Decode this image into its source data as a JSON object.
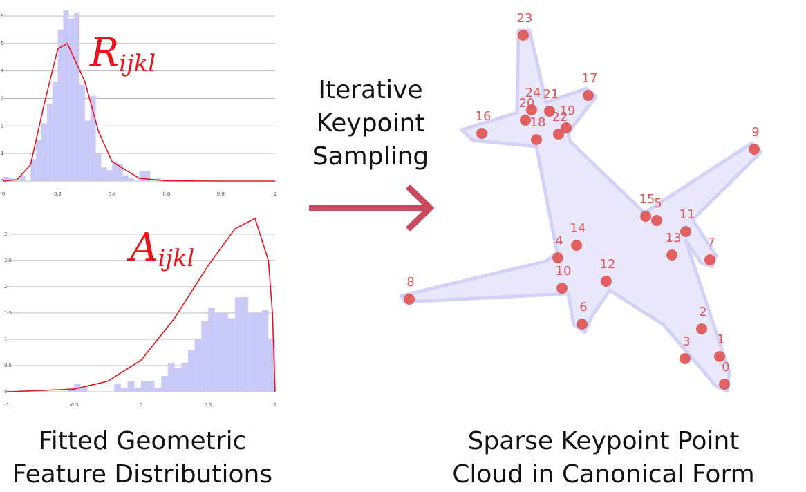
{
  "chart_data": [
    {
      "type": "histogram",
      "bins": [
        0,
        0.02,
        0.04,
        0.06,
        0.08,
        0.1,
        0.12,
        0.14,
        0.16,
        0.18,
        0.2,
        0.22,
        0.24,
        0.26,
        0.28,
        0.3,
        0.32,
        0.34,
        0.36,
        0.38,
        0.4,
        0.42,
        0.44,
        0.46,
        0.48,
        0.5,
        0.52,
        0.54,
        0.56,
        0.58,
        0.6
      ],
      "values": [
        0.15,
        0.1,
        0,
        0.2,
        0,
        0.8,
        1.5,
        2.1,
        2.8,
        3.6,
        5.5,
        6.2,
        5.9,
        6.1,
        3.5,
        2.2,
        3.1,
        1.0,
        0.5,
        0.4,
        0.7,
        0.6,
        0.2,
        0.1,
        0,
        0.35,
        0.35,
        0,
        0.1,
        0
      ],
      "color": "#c9c9f7",
      "fit": {
        "x": [
          0,
          0.05,
          0.1,
          0.15,
          0.2,
          0.235,
          0.3,
          0.35,
          0.4,
          0.5,
          0.6,
          0.8,
          1
        ],
        "values": [
          0,
          0.05,
          0.6,
          2.8,
          4.8,
          5,
          3.6,
          1.8,
          0.7,
          0.1,
          0.01,
          0,
          0
        ],
        "color": "#e8141a"
      },
      "annotation": {
        "text": "R",
        "subscript": "ijkl"
      },
      "xlim": [
        0,
        1
      ],
      "xticks": [
        0,
        0.2,
        0.4,
        0.6,
        0.8,
        1
      ],
      "ylim": [
        0,
        6.2
      ],
      "yticks": [
        0,
        1,
        2,
        3,
        4,
        5,
        6
      ],
      "grid": true
    },
    {
      "type": "histogram",
      "bins": [
        -1,
        -0.95,
        -0.9,
        -0.85,
        -0.8,
        -0.75,
        -0.7,
        -0.65,
        -0.6,
        -0.55,
        -0.5,
        -0.45,
        -0.4,
        -0.35,
        -0.3,
        -0.25,
        -0.2,
        -0.15,
        -0.1,
        -0.05,
        0,
        0.05,
        0.1,
        0.15,
        0.2,
        0.25,
        0.3,
        0.35,
        0.4,
        0.45,
        0.5,
        0.55,
        0.6,
        0.65,
        0.7,
        0.75,
        0.8,
        0.85,
        0.9,
        0.95,
        1
      ],
      "values": [
        0,
        0,
        0,
        0,
        0,
        0.03,
        0,
        0,
        0,
        0.08,
        0.15,
        0.08,
        0,
        0,
        0,
        0,
        0.15,
        0.08,
        0.2,
        0.08,
        0.2,
        0.2,
        0.08,
        0.3,
        0.55,
        0.45,
        0.55,
        0.8,
        1.0,
        1.35,
        1.6,
        1.5,
        1.5,
        1.4,
        1.8,
        1.8,
        1.5,
        1.5,
        1.55,
        1.0
      ],
      "color": "#c9c9f7",
      "fit": {
        "x": [
          -1,
          -0.5,
          -0.25,
          0,
          0.25,
          0.5,
          0.7,
          0.85,
          0.95,
          0.98,
          1
        ],
        "values": [
          0,
          0.05,
          0.2,
          0.6,
          1.4,
          2.4,
          3.1,
          3.3,
          2.5,
          1.5,
          0
        ],
        "color": "#e8141a"
      },
      "annotation": {
        "text": "A",
        "subscript": "ijkl"
      },
      "xlim": [
        -1,
        1
      ],
      "xticks": [
        -1,
        -0.5,
        0,
        0.5,
        1
      ],
      "ylim": [
        0,
        3.3
      ],
      "yticks": [
        0,
        0.5,
        1,
        1.5,
        2,
        2.5,
        3
      ],
      "grid": true
    },
    {
      "type": "scatter",
      "x": [
        488,
        481,
        455,
        431,
        247,
        390,
        282,
        467,
        32,
        531,
        253,
        432,
        317,
        412,
        274,
        374,
        137,
        291,
        216,
        259,
        200,
        235,
        248,
        197,
        209
      ],
      "y": [
        44,
        84,
        124,
        81,
        227,
        281,
        131,
        224,
        167,
        384,
        183,
        265,
        193,
        231,
        245,
        287,
        407,
        462,
        398,
        415,
        426,
        439,
        406,
        549,
        441
      ],
      "labels": [
        0,
        1,
        2,
        3,
        4,
        5,
        6,
        7,
        8,
        9,
        10,
        11,
        12,
        13,
        14,
        15,
        16,
        17,
        18,
        19,
        20,
        21,
        22,
        23,
        24
      ],
      "color": "#e05555",
      "xlim": [
        0,
        550
      ],
      "ylim": [
        0,
        600
      ]
    }
  ],
  "figure": {
    "left_caption": [
      "Fitted Geometric",
      "Feature Distributions"
    ],
    "arrow_caption": [
      "Iterative",
      "Keypoint",
      "Sampling"
    ],
    "right_caption": [
      "Sparse Keypoint Point",
      "Cloud in Canonical Form"
    ]
  }
}
